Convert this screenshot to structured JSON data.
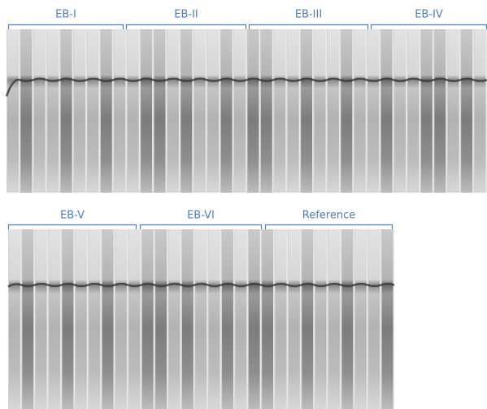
{
  "panels": [
    {
      "groups": [
        {
          "label": "EB-I"
        },
        {
          "label": "EB-II"
        },
        {
          "label": "EB-III"
        },
        {
          "label": "EB-IV"
        }
      ]
    },
    {
      "groups": [
        {
          "label": "EB-V"
        },
        {
          "label": "EB-VI"
        },
        {
          "label": "Reference"
        }
      ]
    }
  ]
}
